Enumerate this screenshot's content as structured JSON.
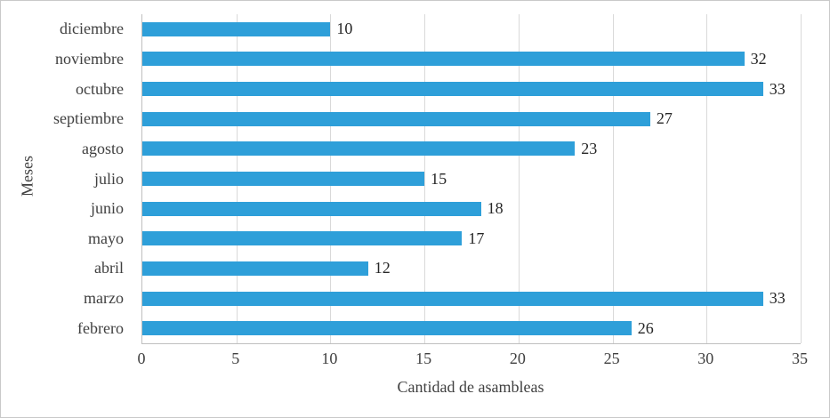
{
  "chart_data": {
    "type": "bar",
    "orientation": "horizontal",
    "title": "",
    "xlabel": "Cantidad de asambleas",
    "ylabel": "Meses",
    "categories": [
      "diciembre",
      "noviembre",
      "octubre",
      "septiembre",
      "agosto",
      "julio",
      "junio",
      "mayo",
      "abril",
      "marzo",
      "febrero"
    ],
    "values": [
      10,
      32,
      33,
      27,
      23,
      15,
      18,
      17,
      12,
      33,
      26
    ],
    "xlim": [
      0,
      35
    ],
    "xticks": [
      0,
      5,
      10,
      15,
      20,
      25,
      30,
      35
    ],
    "grid": "vertical",
    "data_labels": true,
    "legend": "none",
    "colors": {
      "bar": "#2E9FD9",
      "axis": "#BFBFBF",
      "grid": "#D9D9D9",
      "text": "#404040",
      "data_label": "#262626",
      "figure_border": "#C9C9C9",
      "background": "#FFFFFF"
    }
  }
}
